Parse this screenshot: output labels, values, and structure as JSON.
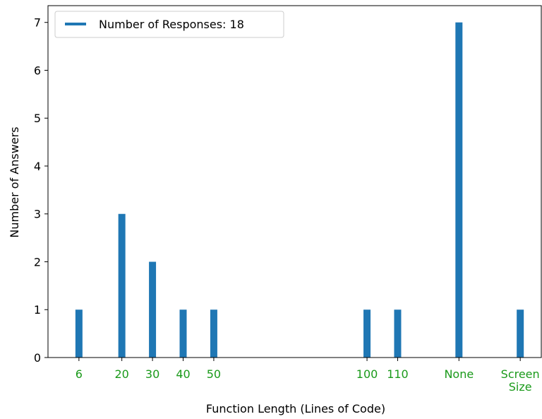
{
  "chart_data": {
    "type": "bar",
    "xlabel": "Function Length (Lines of Code)",
    "ylabel": "Number of Answers",
    "ylim": [
      0,
      7.35
    ],
    "yticks": [
      0,
      1,
      2,
      3,
      4,
      5,
      6,
      7
    ],
    "grid": false,
    "legend": {
      "position": "top-left",
      "entries": [
        "Number of Responses: 18"
      ]
    },
    "bar_color": "#1f77b4",
    "tick_label_color": "#1a9a1a",
    "categories": [
      {
        "label": [
          "6"
        ],
        "position": 6,
        "value": 1
      },
      {
        "label": [
          "20"
        ],
        "position": 20,
        "value": 3
      },
      {
        "label": [
          "30"
        ],
        "position": 30,
        "value": 2
      },
      {
        "label": [
          "40"
        ],
        "position": 40,
        "value": 1
      },
      {
        "label": [
          "50"
        ],
        "position": 50,
        "value": 1
      },
      {
        "label": [
          "100"
        ],
        "position": 100,
        "value": 1
      },
      {
        "label": [
          "110"
        ],
        "position": 110,
        "value": 1
      },
      {
        "label": [
          "None"
        ],
        "position": 130,
        "value": 7
      },
      {
        "label": [
          "Screen",
          "Size"
        ],
        "position": 150,
        "value": 1
      }
    ]
  }
}
